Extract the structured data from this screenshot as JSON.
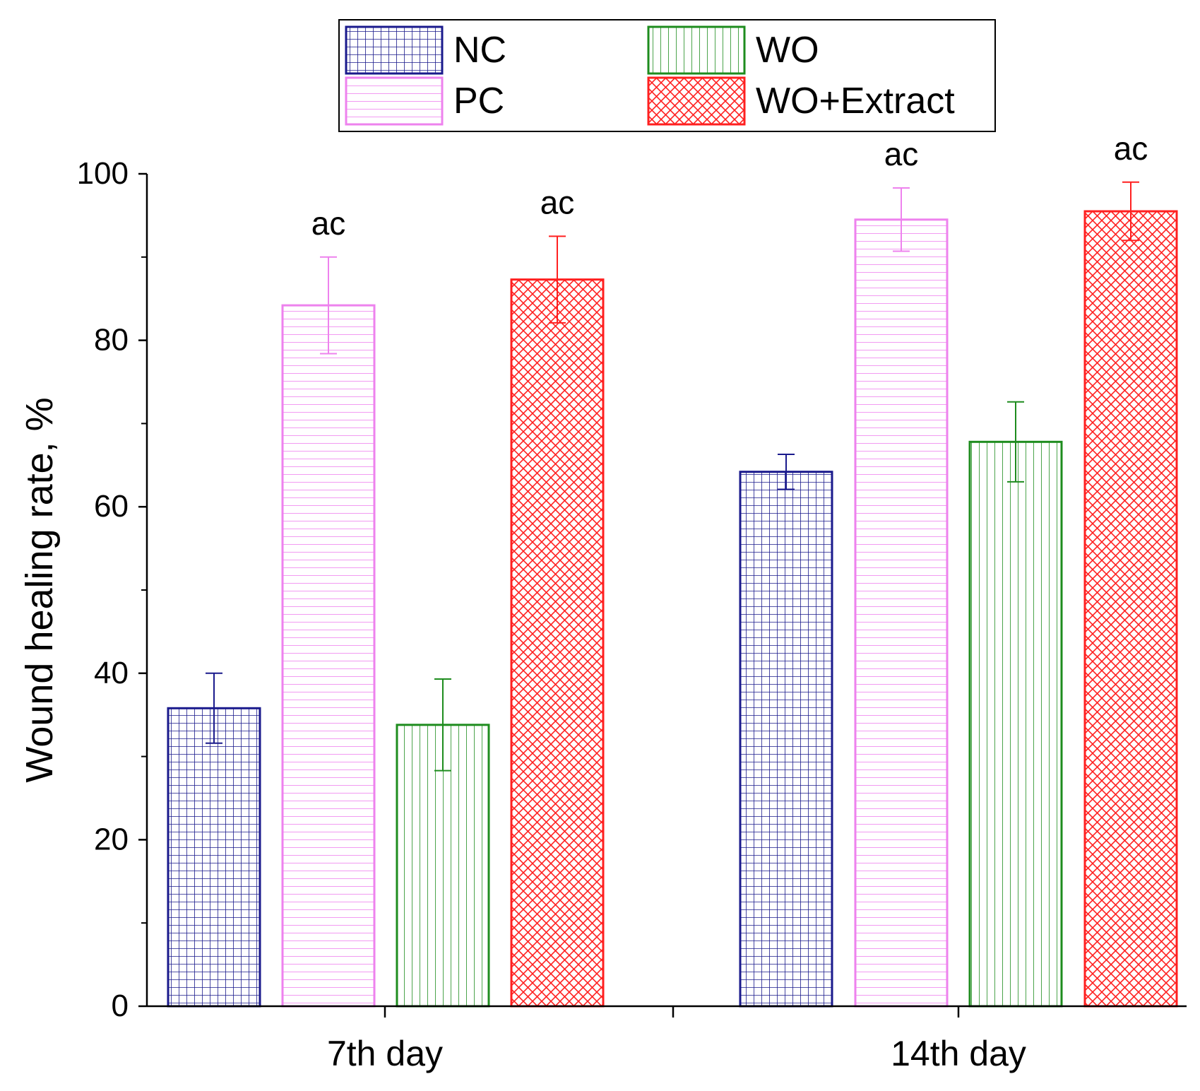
{
  "chart_data": {
    "type": "bar",
    "title": "",
    "xlabel": "",
    "ylabel": "Wound healing rate, %",
    "ylim": [
      0,
      100
    ],
    "yticks": [
      "0",
      "20",
      "40",
      "60",
      "80",
      "100"
    ],
    "categories": [
      "7th day",
      "14th day"
    ],
    "legend_position": "top",
    "series": [
      {
        "name": "NC",
        "color": "#1a1a8c",
        "pattern": "grid",
        "values": [
          35.8,
          64.2
        ],
        "errors": [
          4.2,
          2.1
        ],
        "annotations": [
          "",
          ""
        ]
      },
      {
        "name": "PC",
        "color": "#ee82ee",
        "pattern": "horizontal",
        "values": [
          84.2,
          94.5
        ],
        "errors": [
          5.8,
          3.8
        ],
        "annotations": [
          "ac",
          "ac"
        ]
      },
      {
        "name": "WO",
        "color": "#1e8c1e",
        "pattern": "vertical",
        "values": [
          33.8,
          67.8
        ],
        "errors": [
          5.5,
          4.8
        ],
        "annotations": [
          "",
          ""
        ]
      },
      {
        "name": "WO+Extract",
        "color": "#ff2020",
        "pattern": "crosshatch",
        "values": [
          87.3,
          95.5
        ],
        "errors": [
          5.2,
          3.5
        ],
        "annotations": [
          "ac",
          "ac"
        ]
      }
    ]
  }
}
